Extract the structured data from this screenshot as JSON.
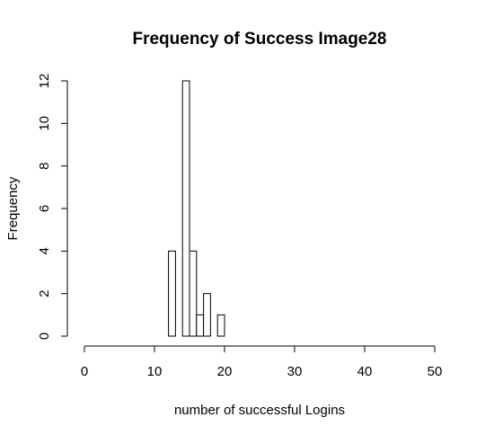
{
  "chart_data": {
    "type": "bar",
    "title": "Frequency of Success Image28",
    "xlabel": "number of successful Logins",
    "ylabel": "Frequency",
    "xlim": [
      0,
      50
    ],
    "ylim": [
      0,
      12
    ],
    "x_ticks": [
      0,
      10,
      20,
      30,
      40,
      50
    ],
    "y_ticks": [
      0,
      2,
      4,
      6,
      8,
      10,
      12
    ],
    "grid": false,
    "bin_width": 1,
    "bins": [
      {
        "start": 12,
        "end": 13,
        "count": 4
      },
      {
        "start": 13,
        "end": 14,
        "count": 0
      },
      {
        "start": 14,
        "end": 15,
        "count": 12
      },
      {
        "start": 15,
        "end": 16,
        "count": 4
      },
      {
        "start": 16,
        "end": 17,
        "count": 1
      },
      {
        "start": 17,
        "end": 18,
        "count": 2
      },
      {
        "start": 18,
        "end": 19,
        "count": 0
      },
      {
        "start": 19,
        "end": 20,
        "count": 1
      }
    ],
    "bar_fill": "#ffffff",
    "bar_stroke": "#000000"
  }
}
